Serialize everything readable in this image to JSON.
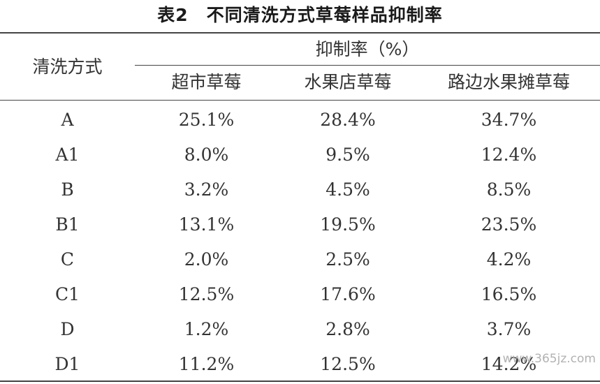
{
  "table": {
    "title": "表2　不同清洗方式草莓样品抑制率",
    "header": {
      "method_label": "清洗方式",
      "group_label": "抑制率（%）",
      "columns": [
        "超市草莓",
        "水果店草莓",
        "路边水果摊草莓"
      ]
    },
    "rows": [
      {
        "method": "A",
        "values": [
          "25.1%",
          "28.4%",
          "34.7%"
        ]
      },
      {
        "method": "A1",
        "values": [
          "8.0%",
          "9.5%",
          "12.4%"
        ]
      },
      {
        "method": "B",
        "values": [
          "3.2%",
          "4.5%",
          "8.5%"
        ]
      },
      {
        "method": "B1",
        "values": [
          "13.1%",
          "19.5%",
          "23.5%"
        ]
      },
      {
        "method": "C",
        "values": [
          "2.0%",
          "2.5%",
          "4.2%"
        ]
      },
      {
        "method": "C1",
        "values": [
          "12.5%",
          "17.6%",
          "16.5%"
        ]
      },
      {
        "method": "D",
        "values": [
          "1.2%",
          "2.8%",
          "3.7%"
        ]
      },
      {
        "method": "D1",
        "values": [
          "11.2%",
          "12.5%",
          "14.2%"
        ]
      }
    ]
  },
  "watermark": "www.365jz.com"
}
